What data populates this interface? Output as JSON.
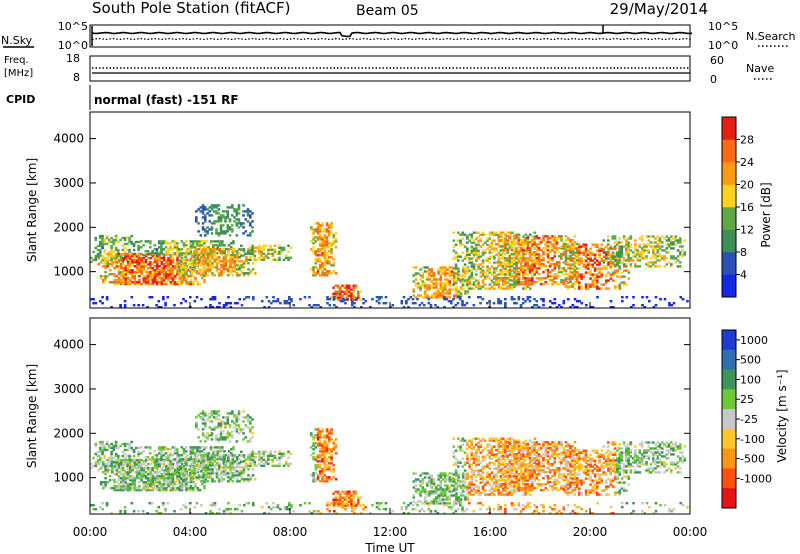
{
  "header": {
    "station": "South Pole Station (fitACF)",
    "beam": "Beam 05",
    "date": "29/May/2014"
  },
  "strip_labels": {
    "nsky": "N.Sky",
    "nsearch": "N.Search",
    "freq_line1": "Freq.",
    "freq_line2": "[MHz]",
    "nave": "Nave",
    "cpid": "CPID",
    "cpid_value": "normal (fast) -151 RF",
    "noise_ticks_left": [
      "10^5",
      "10^0"
    ],
    "noise_ticks_right": [
      "10^5",
      "10^0"
    ],
    "freq_ticks": [
      "18",
      "8"
    ],
    "nave_ticks": [
      "60",
      "0"
    ]
  },
  "chart_data": [
    {
      "type": "heatmap",
      "name": "power-panel",
      "ylabel": "Slant Range [km]",
      "yticks": [
        1000,
        2000,
        3000,
        4000
      ],
      "ylim": [
        180,
        4600
      ],
      "xlim": [
        0,
        24
      ],
      "colorbar": {
        "label": "Power [dB]",
        "tick_labels": [
          "4",
          "8",
          "12",
          "16",
          "20",
          "24",
          "28"
        ],
        "colors": [
          "#1428e6",
          "#2a52b4",
          "#3d8f5a",
          "#5ea845",
          "#ffd21e",
          "#ff9a14",
          "#ff6a14",
          "#e61e14"
        ]
      }
    },
    {
      "type": "heatmap",
      "name": "velocity-panel",
      "ylabel": "Slant Range [km]",
      "yticks": [
        1000,
        2000,
        3000,
        4000
      ],
      "ylim": [
        180,
        4600
      ],
      "xlim": [
        0,
        24
      ],
      "xlabel": "Time UT",
      "xticks": [
        "00:00",
        "04:00",
        "08:00",
        "12:00",
        "16:00",
        "20:00",
        "00:00"
      ],
      "colorbar": {
        "label": "Velocity [m s⁻¹]",
        "tick_labels": [
          "1000",
          "500",
          "100",
          "25",
          "-25",
          "-100",
          "-500",
          "-1000"
        ],
        "colors": [
          "#1e3cd2",
          "#2d6eb4",
          "#3c965a",
          "#6ec83c",
          "#c8c8c8",
          "#ffc828",
          "#ff9614",
          "#ff5014",
          "#e61414"
        ]
      }
    }
  ]
}
